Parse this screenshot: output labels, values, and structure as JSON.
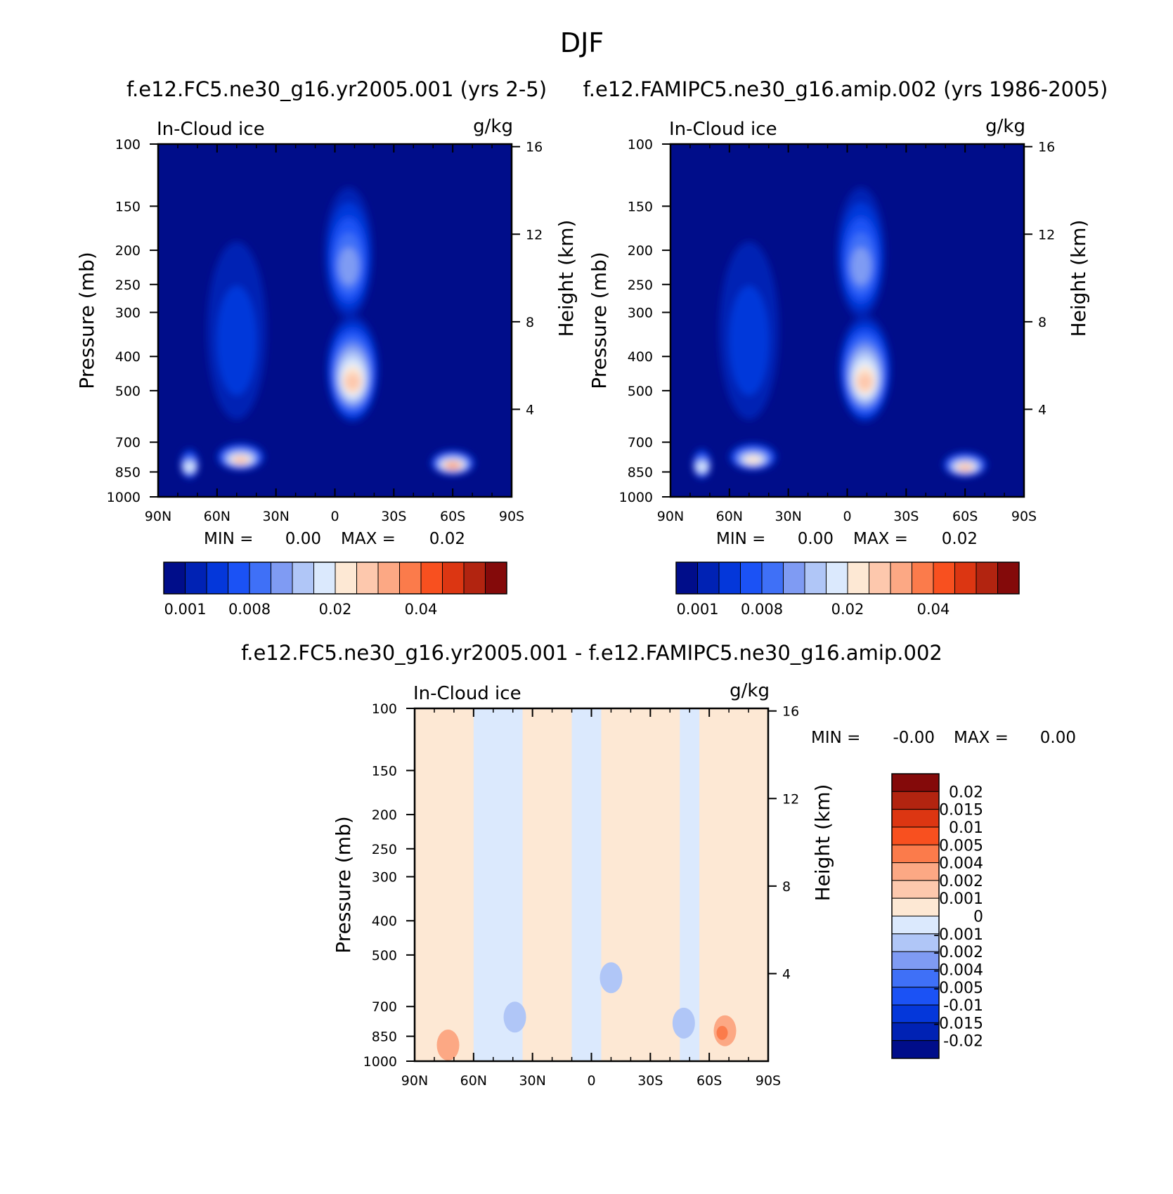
{
  "figure": {
    "title": "DJF"
  },
  "chart_data": [
    {
      "type": "heatmap",
      "title": "f.e12.FC5.ne30_g16.yr2005.001 (yrs 2-5)",
      "variable_label": "In-Cloud ice",
      "units_label": "g/kg",
      "ylabel": "Pressure (mb)",
      "ylabel_right": "Height (km)",
      "x_ticks": [
        "90N",
        "60N",
        "30N",
        "0",
        "30S",
        "60S",
        "90S"
      ],
      "y_ticks": [
        100,
        150,
        200,
        250,
        300,
        400,
        500,
        700,
        850,
        1000
      ],
      "y_ticks_right": [
        16,
        12,
        8,
        4
      ],
      "yscale": "log (pressure)",
      "min_label": "MIN =",
      "min_value": "0.00",
      "max_label": "MAX =",
      "max_value": "0.02",
      "colorbar_labels": [
        "0.001",
        "0.008",
        "0.02",
        "0.04"
      ],
      "colorbar_colors": [
        "#000d8a",
        "#0022b4",
        "#0437da",
        "#1b52f5",
        "#3f70f7",
        "#7f9bf3",
        "#b0c6f7",
        "#dbe9fd",
        "#fde8d4",
        "#fdc8ad",
        "#fca884",
        "#fb7b4b",
        "#f8501f",
        "#dc3612",
        "#b22410",
        "#840a0a"
      ],
      "features": [
        {
          "label": "arctic low-level",
          "lat": -74,
          "p": 830,
          "level": 7,
          "spread_lat": 3,
          "spread_p": 0.13
        },
        {
          "label": "northern midlatitude low-level",
          "lat": -48,
          "p": 790,
          "level": 9,
          "spread_lat": 11,
          "spread_p": 0.12
        },
        {
          "label": "northern midlatitude column",
          "lat": -50,
          "p": 400,
          "level": 2,
          "spread_lat": 14,
          "spread_p": 0.75
        },
        {
          "label": "tropical deep convection",
          "lat": 9,
          "p": 480,
          "level": 9,
          "spread_lat": 12,
          "spread_p": 0.45
        },
        {
          "label": "tropical anvil",
          "lat": 7,
          "p": 230,
          "level": 5,
          "spread_lat": 11,
          "spread_p": 0.55
        },
        {
          "label": "southern midlatitude low-level",
          "lat": 60,
          "p": 820,
          "level": 10,
          "spread_lat": 10,
          "spread_p": 0.11
        }
      ]
    },
    {
      "type": "heatmap",
      "title": "f.e12.FAMIPC5.ne30_g16.amip.002 (yrs 1986-2005)",
      "variable_label": "In-Cloud ice",
      "units_label": "g/kg",
      "ylabel": "Pressure (mb)",
      "ylabel_right": "Height (km)",
      "x_ticks": [
        "90N",
        "60N",
        "30N",
        "0",
        "30S",
        "60S",
        "90S"
      ],
      "y_ticks": [
        100,
        150,
        200,
        250,
        300,
        400,
        500,
        700,
        850,
        1000
      ],
      "y_ticks_right": [
        16,
        12,
        8,
        4
      ],
      "yscale": "log (pressure)",
      "min_label": "MIN =",
      "min_value": "0.00",
      "max_label": "MAX =",
      "max_value": "0.02",
      "colorbar_labels": [
        "0.001",
        "0.008",
        "0.02",
        "0.04"
      ],
      "colorbar_colors": [
        "#000d8a",
        "#0022b4",
        "#0437da",
        "#1b52f5",
        "#3f70f7",
        "#7f9bf3",
        "#b0c6f7",
        "#dbe9fd",
        "#fde8d4",
        "#fdc8ad",
        "#fca884",
        "#fb7b4b",
        "#f8501f",
        "#dc3612",
        "#b22410",
        "#840a0a"
      ],
      "features": [
        {
          "label": "arctic low-level",
          "lat": -74,
          "p": 830,
          "level": 7,
          "spread_lat": 3,
          "spread_p": 0.13
        },
        {
          "label": "northern midlatitude low-level",
          "lat": -48,
          "p": 790,
          "level": 8,
          "spread_lat": 11,
          "spread_p": 0.12
        },
        {
          "label": "northern midlatitude column",
          "lat": -50,
          "p": 400,
          "level": 2,
          "spread_lat": 14,
          "spread_p": 0.75
        },
        {
          "label": "tropical deep convection",
          "lat": 9,
          "p": 480,
          "level": 9,
          "spread_lat": 12,
          "spread_p": 0.45
        },
        {
          "label": "tropical anvil",
          "lat": 7,
          "p": 230,
          "level": 5,
          "spread_lat": 11,
          "spread_p": 0.55
        },
        {
          "label": "southern midlatitude low-level",
          "lat": 60,
          "p": 830,
          "level": 9,
          "spread_lat": 10,
          "spread_p": 0.11
        }
      ]
    },
    {
      "type": "heatmap",
      "title": "f.e12.FC5.ne30_g16.yr2005.001 - f.e12.FAMIPC5.ne30_g16.amip.002",
      "variable_label": "In-Cloud ice",
      "units_label": "g/kg",
      "ylabel": "Pressure (mb)",
      "ylabel_right": "Height (km)",
      "x_ticks": [
        "90N",
        "60N",
        "30N",
        "0",
        "30S",
        "60S",
        "90S"
      ],
      "y_ticks": [
        100,
        150,
        200,
        250,
        300,
        400,
        500,
        700,
        850,
        1000
      ],
      "y_ticks_right": [
        16,
        12,
        8,
        4
      ],
      "yscale": "log (pressure)",
      "min_label": "MIN =",
      "min_value": "-0.00",
      "max_label": "MAX =",
      "max_value": "0.00",
      "colorbar_labels": [
        "0.02",
        "0.015",
        "0.01",
        "0.005",
        "0.004",
        "0.002",
        "0.001",
        "0",
        "-0.001",
        "-0.002",
        "-0.004",
        "-0.005",
        "-0.01",
        "-0.015",
        "-0.02"
      ],
      "colorbar_colors": [
        "#840a0a",
        "#b22410",
        "#dc3612",
        "#f8501f",
        "#fb7b4b",
        "#fca884",
        "#fdc8ad",
        "#fde8d4",
        "#dbe9fd",
        "#b0c6f7",
        "#7f9bf3",
        "#3f70f7",
        "#1b52f5",
        "#0437da",
        "#0022b4",
        "#000d8a"
      ],
      "regions": [
        {
          "label": "positive band 90N-60N",
          "lat_from": -90,
          "lat_to": -60,
          "sign": "positive"
        },
        {
          "label": "negative band 60N-35N",
          "lat_from": -60,
          "lat_to": -35,
          "sign": "negative"
        },
        {
          "label": "positive band 35N-10N",
          "lat_from": -35,
          "lat_to": -10,
          "sign": "positive"
        },
        {
          "label": "negative band near equator",
          "lat_from": -10,
          "lat_to": 5,
          "sign": "negative"
        },
        {
          "label": "positive band 5S-45S",
          "lat_from": 5,
          "lat_to": 45,
          "sign": "positive"
        },
        {
          "label": "negative band 45S-55S",
          "lat_from": 45,
          "lat_to": 55,
          "sign": "negative"
        },
        {
          "label": "positive band 55S-90S",
          "lat_from": 55,
          "lat_to": 90,
          "sign": "positive"
        }
      ],
      "features": [
        {
          "label": "southern midlatitude low-level increase",
          "lat": 68,
          "p": 820,
          "value": 0.004
        },
        {
          "label": "southern low-level decrease",
          "lat": 47,
          "p": 780,
          "value": -0.004
        },
        {
          "label": "tropical mid-level decrease",
          "lat": 10,
          "p": 580,
          "value": -0.004
        },
        {
          "label": "northern low-level decrease",
          "lat": -39,
          "p": 750,
          "value": -0.004
        },
        {
          "label": "arctic low-level increase",
          "lat": -73,
          "p": 900,
          "value": 0.004
        }
      ]
    }
  ]
}
